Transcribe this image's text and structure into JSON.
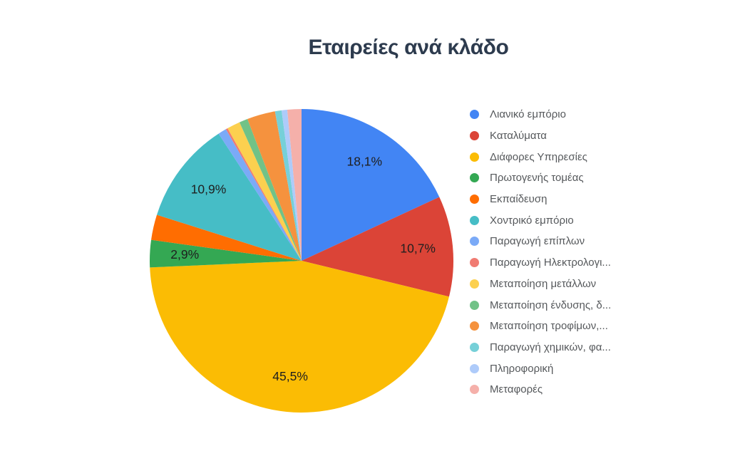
{
  "chart": {
    "title": "Εταιρείες ανά κλάδο",
    "title_color": "#2D3B4E",
    "slice_label_color": "#1F1F1F",
    "legend_text_color": "#55585B",
    "background": "#FFFFFF"
  },
  "chart_data": {
    "type": "pie",
    "title": "Εταιρείες ανά κλάδο",
    "unit": "percent",
    "start_angle_deg": 0,
    "direction": "clockwise",
    "legend_position": "right",
    "slices": [
      {
        "label": "Λιανικό εμπόριο",
        "value": 18.1,
        "display": "18,1%",
        "color": "#4285F4"
      },
      {
        "label": "Καταλύματα",
        "value": 10.7,
        "display": "10,7%",
        "color": "#DB4437"
      },
      {
        "label": "Διάφορες Υπηρεσίες",
        "value": 45.5,
        "display": "45,5%",
        "color": "#FBBC04"
      },
      {
        "label": "Πρωτογενής τομέας",
        "value": 2.9,
        "display": "2,9%",
        "color": "#34A853"
      },
      {
        "label": "Εκπαίδευση",
        "value": 2.7,
        "display": null,
        "color": "#FF6D01"
      },
      {
        "label": "Χοντρικό εμπόριο",
        "value": 10.9,
        "display": "10,9%",
        "color": "#46BDC6"
      },
      {
        "label": "Παραγωγή επίπλων",
        "value": 0.9,
        "display": null,
        "color": "#7BAAF7"
      },
      {
        "label": "Παραγωγή Ηλεκτρολογι...",
        "value": 0.2,
        "display": null,
        "color": "#F07B72"
      },
      {
        "label": "Μεταποίηση μετάλλων",
        "value": 1.4,
        "display": null,
        "color": "#FCD04F"
      },
      {
        "label": "Μεταποίηση ένδυσης, δ...",
        "value": 0.9,
        "display": null,
        "color": "#71C287"
      },
      {
        "label": "Μεταποίηση τροφίμων,...",
        "value": 3.0,
        "display": null,
        "color": "#F5923E"
      },
      {
        "label": "Παραγωγή χημικών, φα...",
        "value": 0.7,
        "display": null,
        "color": "#76D0D8"
      },
      {
        "label": "Πληροφορική",
        "value": 0.6,
        "display": null,
        "color": "#AECBFA"
      },
      {
        "label": "Μεταφορές",
        "value": 1.5,
        "display": null,
        "color": "#F5B0AA"
      }
    ]
  }
}
